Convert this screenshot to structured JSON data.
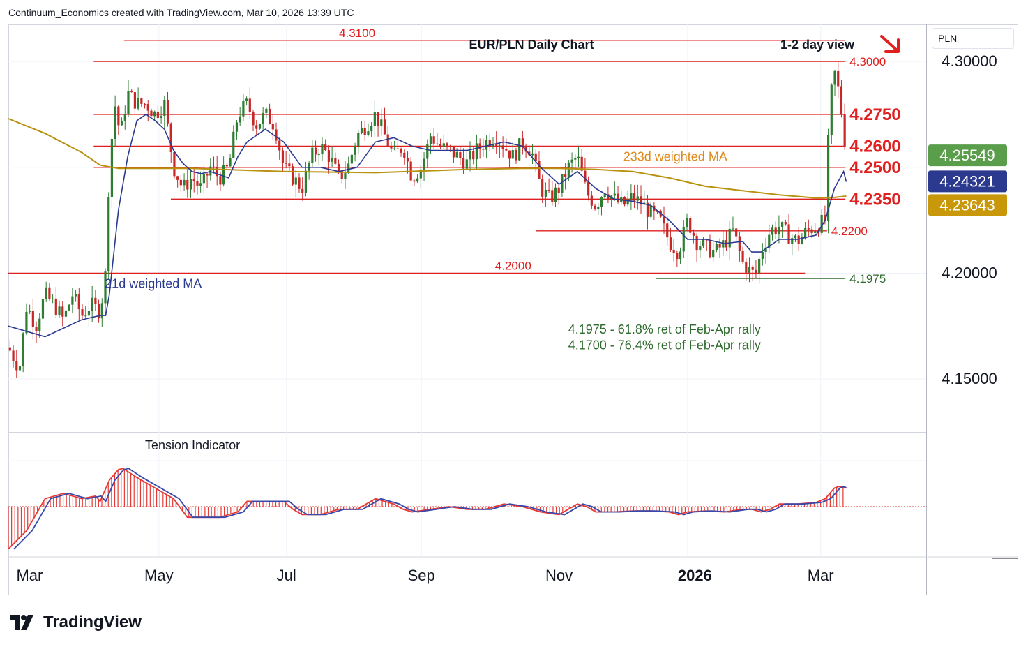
{
  "header": {
    "attribution": "Continuum_Economics created with TradingView.com, Mar 10, 2026 13:39 UTC"
  },
  "axis": {
    "currency": "PLN"
  },
  "brand": {
    "name": "TradingView"
  },
  "colors": {
    "level": "#e01f1f",
    "support_green": "#2e6b2e",
    "ma21": "#2b3a8f",
    "ma233": "#b8920f",
    "up_candle": "#2e7d32",
    "down_candle": "#c62828",
    "tension_hist": "#e53935",
    "tension_signal": "#3949ab",
    "badge_last": "#5a9e4b",
    "badge_ma21": "#2b3a8f",
    "badge_ma233": "#c9980a"
  },
  "chart_data": {
    "type": "candlestick",
    "title": "EUR/PLN Daily Chart",
    "view_label": "1-2 day view",
    "view_icon": "arrow-down-right-icon",
    "ylim": [
      4.125,
      4.3175
    ],
    "y_ticks": [
      "4.30000",
      "4.20000",
      "4.15000"
    ],
    "x_ticks": [
      "Mar",
      "May",
      "Jul",
      "Sep",
      "Nov",
      "2026",
      "Mar"
    ],
    "price_badges": [
      {
        "label": "4.25549",
        "value": 4.25549,
        "kind": "last"
      },
      {
        "label": "4.24321",
        "value": 4.24321,
        "kind": "ma21"
      },
      {
        "label": "4.23643",
        "value": 4.23643,
        "kind": "ma233"
      }
    ],
    "levels": [
      {
        "label": "4.3100",
        "value": 4.31,
        "t_start": 0.126,
        "t_end": 0.912,
        "label_side": "above",
        "label_t": 0.38,
        "big": false
      },
      {
        "label": "4.3000",
        "value": 4.3,
        "t_start": 0.093,
        "t_end": 0.912,
        "label_side": "right",
        "big": false
      },
      {
        "label": "4.2750",
        "value": 4.275,
        "t_start": 0.093,
        "t_end": 0.912,
        "label_side": "right",
        "big": true
      },
      {
        "label": "4.2600",
        "value": 4.26,
        "t_start": 0.093,
        "t_end": 0.912,
        "label_side": "right",
        "big": true
      },
      {
        "label": "4.2500",
        "value": 4.25,
        "t_start": 0.093,
        "t_end": 0.912,
        "label_side": "right",
        "big": true
      },
      {
        "label": "4.2350",
        "value": 4.235,
        "t_start": 0.177,
        "t_end": 0.912,
        "label_side": "right",
        "big": true
      },
      {
        "label": "4.2200",
        "value": 4.22,
        "t_start": 0.575,
        "t_end": 0.892,
        "label_side": "right",
        "big": false
      },
      {
        "label": "4.2000",
        "value": 4.2,
        "t_start": 0.0,
        "t_end": 0.868,
        "label_side": "above",
        "label_t": 0.55,
        "big": false
      },
      {
        "label": "4.1975",
        "value": 4.1975,
        "t_start": 0.706,
        "t_end": 0.912,
        "label_side": "right",
        "big": false,
        "green": true
      }
    ],
    "annotations": [
      {
        "text": "233d weighted MA",
        "t": 0.67,
        "value": 4.253,
        "kind": "ma233"
      },
      {
        "text": "21d weighted MA",
        "t": 0.105,
        "value": 4.193,
        "kind": "ma21"
      },
      {
        "text": "4.1975 - 61.8% ret of Feb-Apr rally",
        "t": 0.61,
        "value": 4.1715,
        "kind": "note"
      },
      {
        "text": "4.1700 - 76.4% ret of Feb-Apr rally",
        "t": 0.61,
        "value": 4.164,
        "kind": "note"
      }
    ],
    "close_points": [
      [
        0.0,
        4.165
      ],
      [
        0.012,
        4.155
      ],
      [
        0.02,
        4.185
      ],
      [
        0.03,
        4.175
      ],
      [
        0.04,
        4.19
      ],
      [
        0.05,
        4.185
      ],
      [
        0.06,
        4.178
      ],
      [
        0.07,
        4.19
      ],
      [
        0.08,
        4.18
      ],
      [
        0.09,
        4.185
      ],
      [
        0.1,
        4.182
      ],
      [
        0.106,
        4.2
      ],
      [
        0.11,
        4.25
      ],
      [
        0.116,
        4.28
      ],
      [
        0.122,
        4.265
      ],
      [
        0.13,
        4.285
      ],
      [
        0.14,
        4.28
      ],
      [
        0.15,
        4.28
      ],
      [
        0.16,
        4.275
      ],
      [
        0.17,
        4.28
      ],
      [
        0.18,
        4.25
      ],
      [
        0.19,
        4.24
      ],
      [
        0.2,
        4.245
      ],
      [
        0.21,
        4.24
      ],
      [
        0.22,
        4.25
      ],
      [
        0.23,
        4.245
      ],
      [
        0.24,
        4.25
      ],
      [
        0.25,
        4.275
      ],
      [
        0.26,
        4.28
      ],
      [
        0.27,
        4.27
      ],
      [
        0.28,
        4.275
      ],
      [
        0.29,
        4.27
      ],
      [
        0.3,
        4.25
      ],
      [
        0.31,
        4.245
      ],
      [
        0.32,
        4.24
      ],
      [
        0.33,
        4.255
      ],
      [
        0.34,
        4.26
      ],
      [
        0.35,
        4.255
      ],
      [
        0.36,
        4.245
      ],
      [
        0.37,
        4.25
      ],
      [
        0.38,
        4.265
      ],
      [
        0.39,
        4.27
      ],
      [
        0.4,
        4.275
      ],
      [
        0.41,
        4.265
      ],
      [
        0.42,
        4.255
      ],
      [
        0.43,
        4.26
      ],
      [
        0.44,
        4.245
      ],
      [
        0.45,
        4.25
      ],
      [
        0.46,
        4.265
      ],
      [
        0.47,
        4.26
      ],
      [
        0.48,
        4.258
      ],
      [
        0.49,
        4.255
      ],
      [
        0.5,
        4.252
      ],
      [
        0.51,
        4.258
      ],
      [
        0.52,
        4.262
      ],
      [
        0.53,
        4.265
      ],
      [
        0.54,
        4.26
      ],
      [
        0.55,
        4.255
      ],
      [
        0.56,
        4.262
      ],
      [
        0.57,
        4.258
      ],
      [
        0.58,
        4.24
      ],
      [
        0.59,
        4.235
      ],
      [
        0.6,
        4.24
      ],
      [
        0.61,
        4.25
      ],
      [
        0.62,
        4.255
      ],
      [
        0.63,
        4.238
      ],
      [
        0.64,
        4.232
      ],
      [
        0.65,
        4.24
      ],
      [
        0.66,
        4.235
      ],
      [
        0.67,
        4.232
      ],
      [
        0.68,
        4.236
      ],
      [
        0.69,
        4.233
      ],
      [
        0.7,
        4.228
      ],
      [
        0.71,
        4.225
      ],
      [
        0.72,
        4.215
      ],
      [
        0.73,
        4.21
      ],
      [
        0.74,
        4.225
      ],
      [
        0.75,
        4.215
      ],
      [
        0.76,
        4.212
      ],
      [
        0.77,
        4.21
      ],
      [
        0.78,
        4.214
      ],
      [
        0.79,
        4.22
      ],
      [
        0.8,
        4.205
      ],
      [
        0.81,
        4.2
      ],
      [
        0.815,
        4.2
      ],
      [
        0.82,
        4.21
      ],
      [
        0.83,
        4.22
      ],
      [
        0.84,
        4.222
      ],
      [
        0.85,
        4.218
      ],
      [
        0.86,
        4.215
      ],
      [
        0.87,
        4.22
      ],
      [
        0.88,
        4.222
      ],
      [
        0.89,
        4.225
      ],
      [
        0.895,
        4.28
      ],
      [
        0.9,
        4.295
      ],
      [
        0.905,
        4.285
      ],
      [
        0.91,
        4.268
      ],
      [
        0.913,
        4.255
      ]
    ],
    "ma21": {
      "name": "21d weighted MA",
      "points": [
        [
          0.0,
          4.175
        ],
        [
          0.04,
          4.17
        ],
        [
          0.08,
          4.178
        ],
        [
          0.1,
          4.18
        ],
        [
          0.106,
          4.18
        ],
        [
          0.11,
          4.19
        ],
        [
          0.12,
          4.23
        ],
        [
          0.13,
          4.255
        ],
        [
          0.14,
          4.272
        ],
        [
          0.15,
          4.275
        ],
        [
          0.16,
          4.272
        ],
        [
          0.17,
          4.268
        ],
        [
          0.18,
          4.258
        ],
        [
          0.19,
          4.252
        ],
        [
          0.2,
          4.248
        ],
        [
          0.21,
          4.247
        ],
        [
          0.22,
          4.248
        ],
        [
          0.24,
          4.245
        ],
        [
          0.25,
          4.255
        ],
        [
          0.26,
          4.262
        ],
        [
          0.28,
          4.268
        ],
        [
          0.3,
          4.262
        ],
        [
          0.32,
          4.25
        ],
        [
          0.34,
          4.25
        ],
        [
          0.36,
          4.248
        ],
        [
          0.38,
          4.25
        ],
        [
          0.4,
          4.262
        ],
        [
          0.42,
          4.264
        ],
        [
          0.44,
          4.26
        ],
        [
          0.46,
          4.258
        ],
        [
          0.48,
          4.258
        ],
        [
          0.5,
          4.258
        ],
        [
          0.52,
          4.26
        ],
        [
          0.54,
          4.262
        ],
        [
          0.56,
          4.26
        ],
        [
          0.58,
          4.25
        ],
        [
          0.6,
          4.242
        ],
        [
          0.62,
          4.248
        ],
        [
          0.64,
          4.24
        ],
        [
          0.66,
          4.235
        ],
        [
          0.68,
          4.234
        ],
        [
          0.7,
          4.232
        ],
        [
          0.72,
          4.225
        ],
        [
          0.74,
          4.216
        ],
        [
          0.76,
          4.216
        ],
        [
          0.78,
          4.214
        ],
        [
          0.8,
          4.215
        ],
        [
          0.81,
          4.21
        ],
        [
          0.82,
          4.21
        ],
        [
          0.84,
          4.216
        ],
        [
          0.86,
          4.216
        ],
        [
          0.88,
          4.218
        ],
        [
          0.89,
          4.225
        ],
        [
          0.9,
          4.24
        ],
        [
          0.91,
          4.248
        ],
        [
          0.913,
          4.2432
        ]
      ]
    },
    "ma233": {
      "name": "233d weighted MA",
      "points": [
        [
          0.0,
          4.273
        ],
        [
          0.04,
          4.266
        ],
        [
          0.08,
          4.257
        ],
        [
          0.1,
          4.251
        ],
        [
          0.12,
          4.2495
        ],
        [
          0.2,
          4.2495
        ],
        [
          0.3,
          4.248
        ],
        [
          0.4,
          4.2475
        ],
        [
          0.5,
          4.249
        ],
        [
          0.56,
          4.2495
        ],
        [
          0.6,
          4.2495
        ],
        [
          0.64,
          4.249
        ],
        [
          0.68,
          4.248
        ],
        [
          0.72,
          4.245
        ],
        [
          0.76,
          4.241
        ],
        [
          0.8,
          4.239
        ],
        [
          0.84,
          4.237
        ],
        [
          0.88,
          4.2355
        ],
        [
          0.9,
          4.2358
        ],
        [
          0.913,
          4.2364
        ]
      ]
    },
    "tension_indicator": {
      "name": "Tension Indicator",
      "ylim": [
        -1,
        1
      ],
      "zero": 0,
      "points": [
        [
          0.0,
          -0.8
        ],
        [
          0.02,
          -0.45
        ],
        [
          0.04,
          0.15
        ],
        [
          0.06,
          0.25
        ],
        [
          0.08,
          0.15
        ],
        [
          0.095,
          0.2
        ],
        [
          0.1,
          0.1
        ],
        [
          0.11,
          0.5
        ],
        [
          0.12,
          0.7
        ],
        [
          0.125,
          0.72
        ],
        [
          0.14,
          0.55
        ],
        [
          0.16,
          0.35
        ],
        [
          0.18,
          0.15
        ],
        [
          0.195,
          -0.2
        ],
        [
          0.21,
          -0.2
        ],
        [
          0.23,
          -0.2
        ],
        [
          0.25,
          -0.1
        ],
        [
          0.26,
          0.1
        ],
        [
          0.28,
          0.1
        ],
        [
          0.3,
          0.1
        ],
        [
          0.31,
          -0.05
        ],
        [
          0.32,
          -0.15
        ],
        [
          0.34,
          -0.15
        ],
        [
          0.36,
          -0.05
        ],
        [
          0.38,
          -0.05
        ],
        [
          0.39,
          0.05
        ],
        [
          0.4,
          0.15
        ],
        [
          0.42,
          0.05
        ],
        [
          0.43,
          -0.05
        ],
        [
          0.44,
          -0.1
        ],
        [
          0.46,
          -0.05
        ],
        [
          0.48,
          0.0
        ],
        [
          0.5,
          -0.05
        ],
        [
          0.52,
          -0.05
        ],
        [
          0.54,
          0.05
        ],
        [
          0.56,
          0.0
        ],
        [
          0.58,
          -0.1
        ],
        [
          0.6,
          -0.15
        ],
        [
          0.62,
          0.05
        ],
        [
          0.63,
          0.0
        ],
        [
          0.64,
          -0.1
        ],
        [
          0.66,
          -0.1
        ],
        [
          0.68,
          -0.08
        ],
        [
          0.7,
          -0.08
        ],
        [
          0.72,
          -0.1
        ],
        [
          0.73,
          -0.15
        ],
        [
          0.74,
          -0.1
        ],
        [
          0.76,
          -0.08
        ],
        [
          0.78,
          -0.1
        ],
        [
          0.8,
          -0.05
        ],
        [
          0.81,
          -0.05
        ],
        [
          0.82,
          -0.1
        ],
        [
          0.83,
          -0.05
        ],
        [
          0.84,
          0.05
        ],
        [
          0.86,
          0.05
        ],
        [
          0.88,
          0.08
        ],
        [
          0.89,
          0.15
        ],
        [
          0.9,
          0.35
        ],
        [
          0.905,
          0.38
        ],
        [
          0.913,
          0.35
        ]
      ]
    }
  }
}
